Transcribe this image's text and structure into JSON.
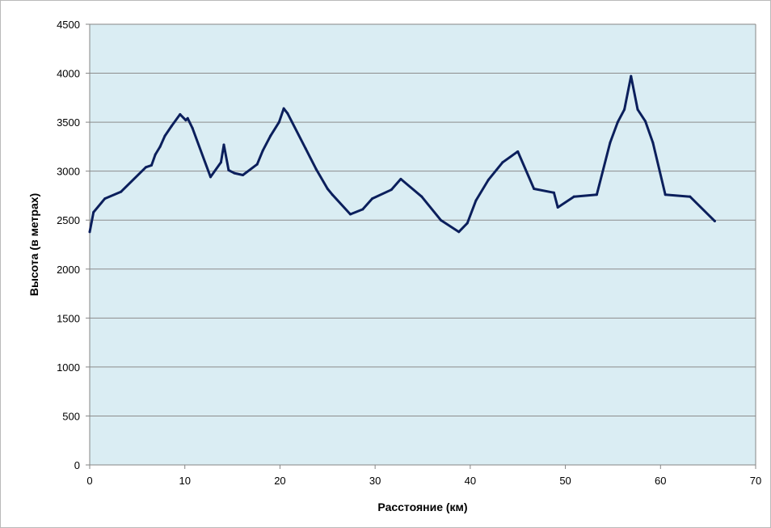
{
  "chart_data": {
    "type": "line",
    "title": "",
    "xlabel": "Расстояние (км)",
    "ylabel": "Высота (в метрах)",
    "xlim": [
      0,
      70
    ],
    "ylim": [
      0,
      4500
    ],
    "x_ticks": [
      0,
      10,
      20,
      30,
      40,
      50,
      60,
      70
    ],
    "y_ticks": [
      0,
      500,
      1000,
      1500,
      2000,
      2500,
      3000,
      3500,
      4000,
      4500
    ],
    "grid": "horizontal",
    "legend": "none",
    "colors": {
      "plot_background": "#daedf3",
      "line": "#0b1f5c",
      "grid": "#8c8c8c"
    },
    "series": [
      {
        "points": [
          [
            0,
            2380
          ],
          [
            0.4,
            2580
          ],
          [
            1.6,
            2720
          ],
          [
            3.3,
            2790
          ],
          [
            5.9,
            3040
          ],
          [
            6.5,
            3060
          ],
          [
            6.9,
            3170
          ],
          [
            7.4,
            3250
          ],
          [
            7.9,
            3360
          ],
          [
            8.6,
            3460
          ],
          [
            9.5,
            3580
          ],
          [
            10.1,
            3520
          ],
          [
            10.3,
            3540
          ],
          [
            10.8,
            3440
          ],
          [
            12.7,
            2940
          ],
          [
            13.8,
            3090
          ],
          [
            14.1,
            3270
          ],
          [
            14.6,
            3010
          ],
          [
            15.2,
            2980
          ],
          [
            16.1,
            2960
          ],
          [
            17.6,
            3070
          ],
          [
            18.2,
            3210
          ],
          [
            19.0,
            3360
          ],
          [
            19.9,
            3500
          ],
          [
            20.4,
            3640
          ],
          [
            20.8,
            3590
          ],
          [
            22.7,
            3230
          ],
          [
            23.8,
            3020
          ],
          [
            25.0,
            2820
          ],
          [
            25.5,
            2760
          ],
          [
            27.4,
            2560
          ],
          [
            28.7,
            2610
          ],
          [
            29.7,
            2720
          ],
          [
            31.7,
            2810
          ],
          [
            32.7,
            2920
          ],
          [
            34.9,
            2740
          ],
          [
            36.9,
            2500
          ],
          [
            38.8,
            2380
          ],
          [
            39.7,
            2470
          ],
          [
            40.6,
            2700
          ],
          [
            41.9,
            2910
          ],
          [
            43.4,
            3090
          ],
          [
            45.0,
            3200
          ],
          [
            46.7,
            2820
          ],
          [
            48.8,
            2780
          ],
          [
            49.2,
            2630
          ],
          [
            50.9,
            2740
          ],
          [
            53.3,
            2760
          ],
          [
            54.7,
            3290
          ],
          [
            55.5,
            3500
          ],
          [
            56.2,
            3630
          ],
          [
            56.9,
            3970
          ],
          [
            57.6,
            3630
          ],
          [
            58.4,
            3510
          ],
          [
            59.2,
            3290
          ],
          [
            60.5,
            2760
          ],
          [
            63.1,
            2740
          ],
          [
            65.7,
            2490
          ]
        ]
      }
    ]
  }
}
